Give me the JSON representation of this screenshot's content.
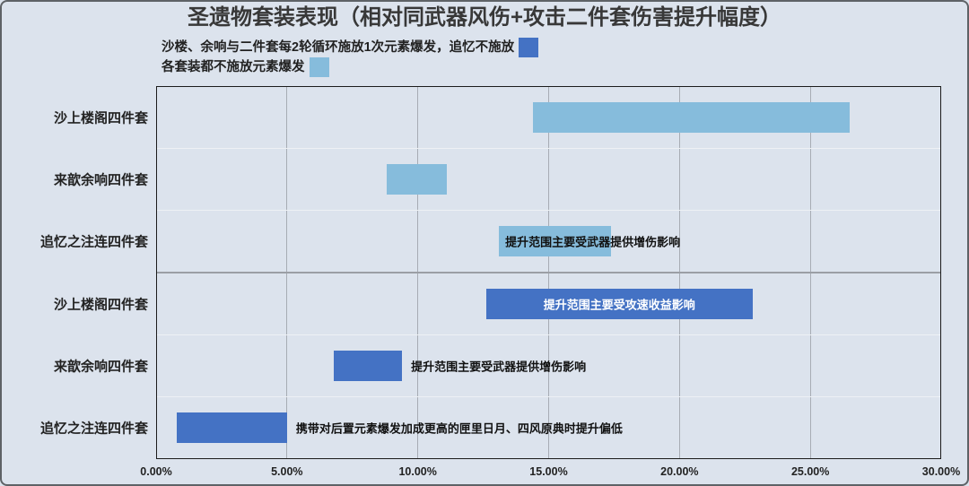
{
  "chart_data": {
    "type": "bar",
    "orientation": "horizontal",
    "title": "圣遗物套装表现（相对同武器风伤+攻击二件套伤害提升幅度）",
    "legend_position": "top-left",
    "grid": true,
    "xlim": [
      0,
      30
    ],
    "x_ticks": [
      "0.00%",
      "5.00%",
      "10.00%",
      "15.00%",
      "20.00%",
      "25.00%",
      "30.00%"
    ],
    "categories": [
      "沙上楼阁四件套",
      "来歆余响四件套",
      "追忆之注连四件套"
    ],
    "series": [
      {
        "name": "沙楼、余响与二件套每2轮循环施放1次元素爆发，追忆不施放",
        "color": "#4472c4",
        "ranges": [
          [
            12.6,
            22.8
          ],
          [
            6.8,
            9.4
          ],
          [
            0.8,
            5.0
          ]
        ]
      },
      {
        "name": "各套装都不施放元素爆发",
        "color": "#86bcdc",
        "ranges": [
          [
            14.4,
            26.5
          ],
          [
            8.8,
            11.1
          ],
          [
            13.1,
            17.4
          ]
        ]
      }
    ],
    "annotations": [
      {
        "series": 1,
        "category": 2,
        "text": "提升范围主要受武器提供增伤影响"
      },
      {
        "series": 0,
        "category": 0,
        "text": "提升范围主要受攻速收益影响"
      },
      {
        "series": 0,
        "category": 1,
        "text": "提升范围主要受武器提供增伤影响"
      },
      {
        "series": 0,
        "category": 2,
        "text": "携带对后置元素爆发加成更高的匣里日月、四风原典时提升偏低"
      }
    ]
  }
}
